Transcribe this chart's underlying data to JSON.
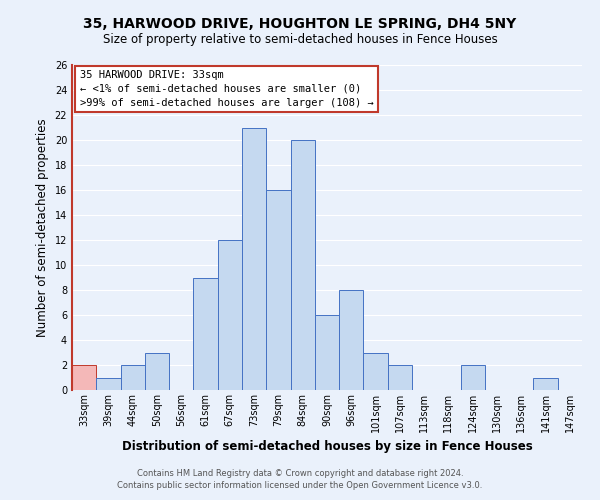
{
  "title": "35, HARWOOD DRIVE, HOUGHTON LE SPRING, DH4 5NY",
  "subtitle": "Size of property relative to semi-detached houses in Fence Houses",
  "xlabel": "Distribution of semi-detached houses by size in Fence Houses",
  "ylabel": "Number of semi-detached properties",
  "bin_labels": [
    "33sqm",
    "39sqm",
    "44sqm",
    "50sqm",
    "56sqm",
    "61sqm",
    "67sqm",
    "73sqm",
    "79sqm",
    "84sqm",
    "90sqm",
    "96sqm",
    "101sqm",
    "107sqm",
    "113sqm",
    "118sqm",
    "124sqm",
    "130sqm",
    "136sqm",
    "141sqm",
    "147sqm"
  ],
  "bar_values": [
    2,
    1,
    2,
    3,
    0,
    9,
    12,
    21,
    16,
    20,
    6,
    8,
    3,
    2,
    0,
    0,
    2,
    0,
    0,
    1,
    0
  ],
  "highlight_bin": 0,
  "bar_color": "#c5d9f0",
  "bar_edge_color": "#4472c4",
  "highlight_color": "#f4b8b8",
  "highlight_edge_color": "#c0392b",
  "ylim": [
    0,
    26
  ],
  "yticks": [
    0,
    2,
    4,
    6,
    8,
    10,
    12,
    14,
    16,
    18,
    20,
    22,
    24,
    26
  ],
  "annotation_title": "35 HARWOOD DRIVE: 33sqm",
  "annotation_line1": "← <1% of semi-detached houses are smaller (0)",
  "annotation_line2": ">99% of semi-detached houses are larger (108) →",
  "footnote1": "Contains HM Land Registry data © Crown copyright and database right 2024.",
  "footnote2": "Contains public sector information licensed under the Open Government Licence v3.0.",
  "bg_color": "#eaf1fb",
  "plot_bg_color": "#eaf1fb",
  "grid_color": "#ffffff",
  "annotation_box_color": "#ffffff",
  "annotation_box_edge": "#c0392b",
  "title_fontsize": 10,
  "subtitle_fontsize": 8.5,
  "axis_label_fontsize": 8.5,
  "tick_fontsize": 7,
  "annotation_fontsize": 7.5,
  "footnote_fontsize": 6
}
